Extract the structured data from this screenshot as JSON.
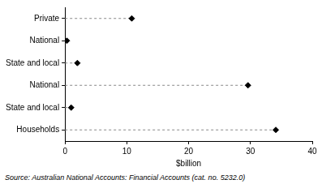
{
  "chart_data": {
    "type": "dot",
    "orientation": "horizontal",
    "categories": [
      "Private",
      "National",
      "State and local",
      "National",
      "State and local",
      "Households"
    ],
    "values": [
      10.8,
      0.3,
      2.0,
      29.6,
      1.0,
      34.1
    ],
    "color": "#000000",
    "marker": "diamond",
    "line_style": "dashed",
    "x_label": "$billion",
    "xlim": [
      0,
      40
    ],
    "xticks": [
      0,
      10,
      20,
      30,
      40
    ],
    "grid": false,
    "annotation": "Source: Australian National Accounts: Financial Accounts (cat. no. 5232.0)"
  }
}
